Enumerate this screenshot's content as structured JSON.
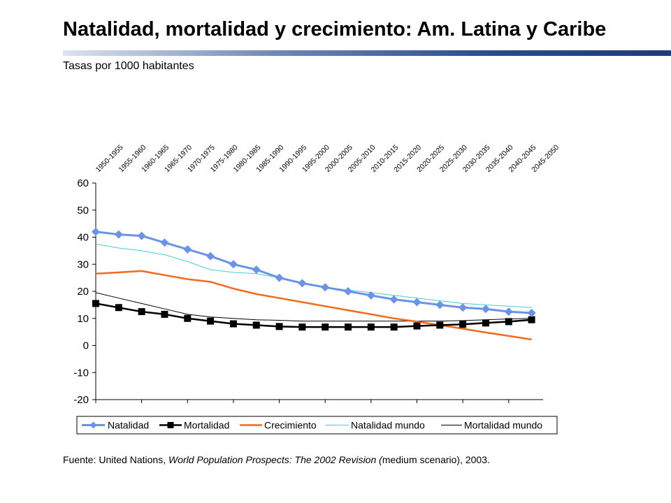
{
  "header": {
    "title": "Natalidad, mortalidad y crecimiento: Am. Latina y Caribe",
    "subtitle": "Tasas por 1000 habitantes"
  },
  "footer": {
    "source_prefix": "Fuente: United Nations, ",
    "source_italic": "World Population Prospects: The 2002 Revision (",
    "source_middle": "medium scenario",
    "source_end": "), 2003."
  },
  "chart_data": {
    "type": "line",
    "title": "Natalidad, mortalidad y crecimiento: Am. Latina y Caribe",
    "subtitle": "Tasas por 1000 habitantes",
    "xlabel": "",
    "ylabel": "",
    "categories": [
      "1950-1955",
      "1955-1960",
      "1960-1965",
      "1965-1970",
      "1970-1975",
      "1975-1980",
      "1980-1985",
      "1985-1990",
      "1990-1995",
      "1995-2000",
      "2000-2005",
      "2005-2010",
      "2010-2015",
      "2015-2020",
      "2020-2025",
      "2025-2030",
      "2030-2035",
      "2035-2040",
      "2040-2045",
      "2045-2050"
    ],
    "yticks": [
      "60",
      "50",
      "40",
      "30",
      "20",
      "10",
      "0",
      "-10",
      "-20"
    ],
    "ylim": [
      -20,
      60
    ],
    "grid": false,
    "legend_position": "bottom",
    "series": [
      {
        "name": "Natalidad",
        "color": "#6a93e8",
        "marker": "diamond",
        "values": [
          42,
          41,
          40.5,
          38,
          35.5,
          33,
          30,
          28,
          25,
          23,
          21.5,
          20,
          18.5,
          17,
          16,
          15,
          14,
          13.5,
          12.5,
          12
        ]
      },
      {
        "name": "Mortalidad",
        "color": "#000000",
        "marker": "square",
        "values": [
          15.5,
          14,
          12.5,
          11.5,
          10,
          9,
          8,
          7.5,
          7,
          6.8,
          6.8,
          6.8,
          6.8,
          6.8,
          7.2,
          7.5,
          7.8,
          8.3,
          8.8,
          9.5
        ]
      },
      {
        "name": "Crecimiento",
        "color": "#f26b1d",
        "marker": "none",
        "values": [
          26.5,
          27,
          27.5,
          26,
          24.5,
          23.5,
          21,
          19,
          17.5,
          16,
          14.5,
          13,
          11.5,
          10,
          8.8,
          7.5,
          6.2,
          4.8,
          3.5,
          2.2
        ]
      },
      {
        "name": "Natalidad mundo",
        "color": "#4ac8d8",
        "marker": "none",
        "values": [
          37.5,
          36,
          35,
          33.5,
          31,
          28,
          27,
          26.5,
          25,
          23,
          21.5,
          20.5,
          19.5,
          18.5,
          17.5,
          16.5,
          15.5,
          15,
          14.5,
          14
        ]
      },
      {
        "name": "Mortalidad mundo",
        "color": "#000000",
        "marker": "none",
        "values": [
          19.5,
          17.5,
          15.5,
          13.5,
          11.5,
          10.5,
          10,
          9.5,
          9.3,
          9,
          9,
          9,
          9,
          9,
          9,
          9,
          9.2,
          9.5,
          9.8,
          10
        ]
      }
    ]
  }
}
